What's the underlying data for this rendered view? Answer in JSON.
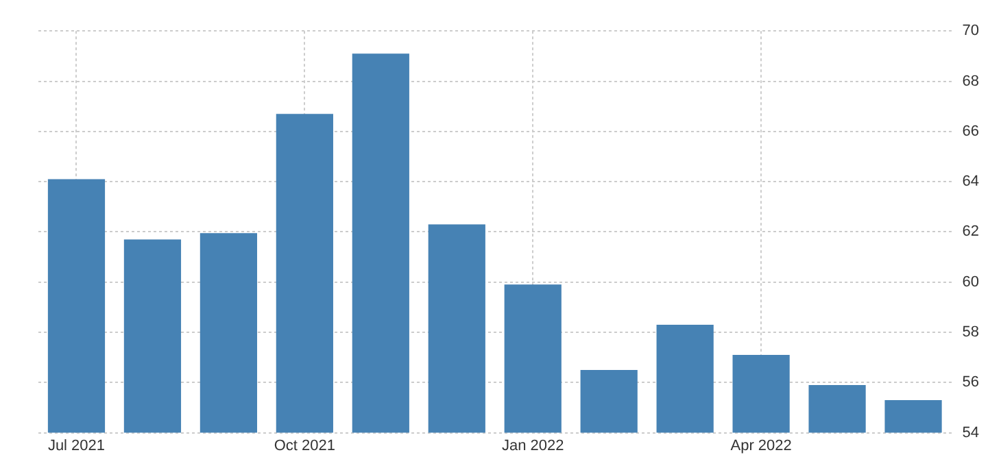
{
  "chart_data": {
    "type": "bar",
    "categories": [
      "Jul 2021",
      null,
      null,
      "Oct 2021",
      null,
      null,
      "Jan 2022",
      null,
      null,
      "Apr 2022",
      null,
      null
    ],
    "values": [
      64.1,
      61.7,
      61.95,
      66.7,
      69.1,
      62.3,
      59.9,
      56.5,
      58.3,
      57.1,
      55.9,
      55.3
    ],
    "color": "#4682b4",
    "ylim": [
      54,
      70
    ],
    "yticks": [
      54,
      56,
      58,
      60,
      62,
      64,
      66,
      68,
      70
    ],
    "grid": true,
    "legend": false
  }
}
